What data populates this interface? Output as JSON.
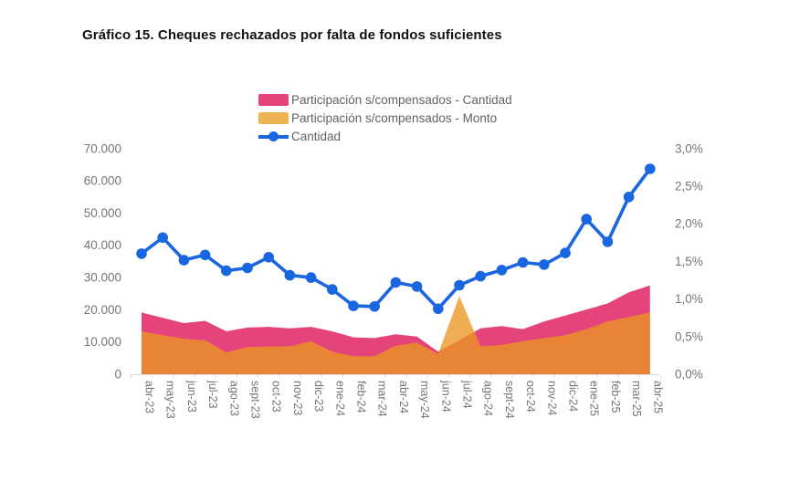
{
  "title": "Gráfico 15. Cheques rechazados por falta de fondos suficientes",
  "legend": {
    "items": [
      {
        "label": "Participación s/compensados - Cantidad",
        "color": "#e5437c",
        "marker": "area"
      },
      {
        "label": "Participación s/compensados - Monto",
        "color": "#eeb452",
        "marker": "area"
      },
      {
        "label": "Cantidad",
        "color": "#1a66e0",
        "marker": "line-dot"
      }
    ]
  },
  "chart_data": {
    "type": "area+line",
    "title": "Gráfico 15. Cheques rechazados por falta de fondos suficientes",
    "grid": false,
    "legend_position": "top",
    "categories": [
      "abr-23",
      "may-23",
      "jun-23",
      "jul-23",
      "ago-23",
      "sept-23",
      "oct-23",
      "nov-23",
      "dic-23",
      "ene-24",
      "feb-24",
      "mar-24",
      "abr-24",
      "may-24",
      "jun-24",
      "jul-24",
      "ago-24",
      "sept-24",
      "oct-24",
      "nov-24",
      "dic-24",
      "ene-25",
      "feb-25",
      "mar-25",
      "abr-25"
    ],
    "left_axis": {
      "min": 0,
      "max": 70000,
      "ticks": [
        "0",
        "10.000",
        "20.000",
        "30.000",
        "40.000",
        "50.000",
        "60.000",
        "70.000"
      ]
    },
    "right_axis": {
      "min": 0,
      "max": 3,
      "unit": "%",
      "ticks": [
        "0,0%",
        "0,5%",
        "1,0%",
        "1,5%",
        "2,0%",
        "2,5%",
        "3,0%"
      ]
    },
    "series": [
      {
        "name": "Participación s/compensados - Cantidad",
        "type": "area",
        "axis": "right",
        "color": "#e5437c",
        "opacity": 1,
        "values": [
          0.82,
          0.75,
          0.68,
          0.71,
          0.57,
          0.62,
          0.63,
          0.61,
          0.63,
          0.57,
          0.49,
          0.48,
          0.53,
          0.5,
          0.3,
          0.45,
          0.61,
          0.64,
          0.6,
          0.7,
          0.78,
          0.86,
          0.94,
          1.09,
          1.18
        ]
      },
      {
        "name": "Participación s/compensados - Monto",
        "type": "area",
        "axis": "right",
        "color": "#eb9722",
        "opacity": 0.78,
        "values": [
          0.57,
          0.52,
          0.47,
          0.45,
          0.29,
          0.36,
          0.37,
          0.37,
          0.44,
          0.3,
          0.24,
          0.24,
          0.38,
          0.42,
          0.27,
          1.04,
          0.37,
          0.39,
          0.44,
          0.48,
          0.52,
          0.6,
          0.7,
          0.76,
          0.82
        ]
      },
      {
        "name": "Cantidad",
        "type": "line",
        "axis": "left",
        "color": "#1a66e0",
        "line_width": 3.6,
        "marker_radius": 5.8,
        "values": [
          37400,
          42400,
          35400,
          37000,
          32100,
          33000,
          36300,
          30700,
          30000,
          26300,
          21200,
          21000,
          28500,
          27200,
          20300,
          27600,
          30400,
          32300,
          34700,
          34000,
          37600,
          48100,
          41100,
          55000,
          63700
        ]
      }
    ]
  }
}
